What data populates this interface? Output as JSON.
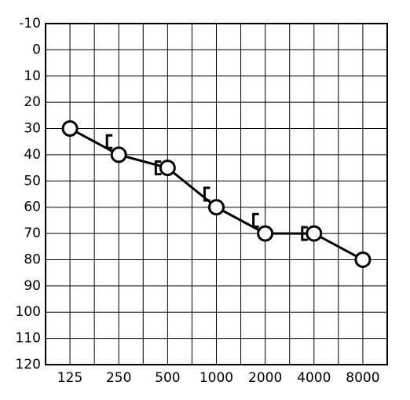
{
  "chart_data": {
    "type": "line",
    "categories": [
      "125",
      "250",
      "500",
      "1000",
      "2000",
      "4000",
      "8000"
    ],
    "series": [
      {
        "color": "#000000",
        "marker": "circle",
        "connect": true,
        "values": [
          30,
          40,
          45,
          60,
          70,
          70,
          80
        ]
      },
      {
        "color": "#000000",
        "marker": "bracket",
        "connect": false,
        "values": [
          null,
          35,
          45,
          55,
          65,
          70,
          null
        ]
      }
    ],
    "ylim": [
      -10,
      120
    ],
    "yticks": [
      -10,
      0,
      10,
      20,
      30,
      40,
      50,
      60,
      70,
      80,
      90,
      100,
      110,
      120
    ],
    "y_inverted": true,
    "grid": true
  }
}
